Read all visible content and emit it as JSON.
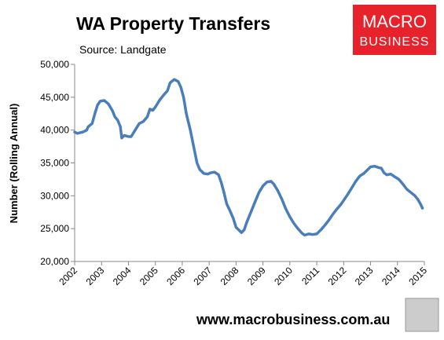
{
  "chart_data": {
    "type": "line",
    "title": "WA Property Transfers",
    "subtitle": "Source: Landgate",
    "y_label": "Number (Rolling Annual)",
    "logo": [
      "MACRO",
      "BUSINESS"
    ],
    "website": "www.macrobusiness.com.au",
    "color": "#4a7ebb",
    "x": [
      2002.0,
      2002.1,
      2002.3,
      2002.45,
      2002.5,
      2002.65,
      2002.75,
      2002.85,
      2002.95,
      2003.1,
      2003.25,
      2003.4,
      2003.5,
      2003.6,
      2003.7,
      2003.75,
      2003.85,
      2004.0,
      2004.1,
      2004.25,
      2004.4,
      2004.55,
      2004.7,
      2004.8,
      2004.9,
      2005.0,
      2005.15,
      2005.3,
      2005.45,
      2005.55,
      2005.7,
      2005.85,
      2005.95,
      2006.05,
      2006.15,
      2006.3,
      2006.45,
      2006.55,
      2006.65,
      2006.8,
      2006.95,
      2007.05,
      2007.2,
      2007.35,
      2007.45,
      2007.55,
      2007.65,
      2007.8,
      2007.9,
      2008.0,
      2008.1,
      2008.2,
      2008.3,
      2008.4,
      2008.55,
      2008.7,
      2008.85,
      2009.0,
      2009.15,
      2009.3,
      2009.4,
      2009.55,
      2009.7,
      2009.85,
      2010.0,
      2010.15,
      2010.3,
      2010.45,
      2010.55,
      2010.7,
      2010.85,
      2011.0,
      2011.15,
      2011.3,
      2011.45,
      2011.6,
      2011.75,
      2011.9,
      2012.0,
      2012.15,
      2012.3,
      2012.45,
      2012.6,
      2012.75,
      2012.9,
      2013.0,
      2013.15,
      2013.3,
      2013.4,
      2013.5,
      2013.6,
      2013.75,
      2013.9,
      2014.05,
      2014.2,
      2014.35,
      2014.5,
      2014.65,
      2014.75,
      2014.85,
      2014.93
    ],
    "values": [
      39700,
      39500,
      39700,
      40000,
      40500,
      41000,
      42500,
      43800,
      44400,
      44500,
      44000,
      43000,
      42000,
      41500,
      40500,
      38800,
      39200,
      39000,
      39000,
      40000,
      41000,
      41300,
      42000,
      43200,
      43000,
      43500,
      44500,
      45300,
      46000,
      47200,
      47700,
      47400,
      46500,
      45000,
      42500,
      40000,
      37000,
      35000,
      34000,
      33400,
      33300,
      33500,
      33600,
      33200,
      32000,
      30500,
      28800,
      27500,
      26500,
      25200,
      24800,
      24400,
      24800,
      26000,
      27500,
      29000,
      30500,
      31500,
      32100,
      32200,
      31800,
      30800,
      29500,
      28000,
      26800,
      25800,
      25000,
      24300,
      24000,
      24200,
      24100,
      24200,
      24800,
      25500,
      26300,
      27200,
      28000,
      28700,
      29300,
      30200,
      31200,
      32200,
      33000,
      33400,
      34000,
      34400,
      34500,
      34300,
      34200,
      33500,
      33200,
      33300,
      32900,
      32500,
      31800,
      31000,
      30500,
      30000,
      29500,
      28800,
      28100
    ],
    "xlim": [
      2002,
      2015
    ],
    "xticks": [
      2002,
      2003,
      2004,
      2005,
      2006,
      2007,
      2008,
      2009,
      2010,
      2011,
      2012,
      2013,
      2014,
      2015
    ],
    "ylim": [
      20000,
      50000
    ],
    "yticks": [
      {
        "value": 20000,
        "label": "20,000"
      },
      {
        "value": 25000,
        "label": "25,000"
      },
      {
        "value": 30000,
        "label": "30,000"
      },
      {
        "value": 35000,
        "label": "35,000"
      },
      {
        "value": 40000,
        "label": "40,000"
      },
      {
        "value": 45000,
        "label": "45,000"
      },
      {
        "value": 50000,
        "label": "50,000"
      }
    ],
    "grid": false
  }
}
